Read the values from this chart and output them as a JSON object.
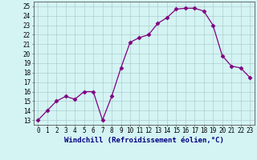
{
  "x": [
    0,
    1,
    2,
    3,
    4,
    5,
    6,
    7,
    8,
    9,
    10,
    11,
    12,
    13,
    14,
    15,
    16,
    17,
    18,
    19,
    20,
    21,
    22,
    23
  ],
  "y": [
    13,
    14,
    15,
    15.5,
    15.2,
    16,
    16,
    13,
    15.5,
    18.5,
    21.2,
    21.7,
    22,
    23.2,
    23.8,
    24.7,
    24.8,
    24.8,
    24.5,
    23.0,
    19.8,
    18.7,
    18.5,
    17.5
  ],
  "line_color": "#800080",
  "marker": "D",
  "marker_size": 2.5,
  "bg_color": "#d4f4f4",
  "grid_color": "#b0cccc",
  "xlabel": "Windchill (Refroidissement éolien,°C)",
  "xlabel_fontsize": 6.5,
  "ylabel_ticks": [
    13,
    14,
    15,
    16,
    17,
    18,
    19,
    20,
    21,
    22,
    23,
    24,
    25
  ],
  "xtick_labels": [
    "0",
    "1",
    "2",
    "3",
    "4",
    "5",
    "6",
    "7",
    "8",
    "9",
    "10",
    "11",
    "12",
    "13",
    "14",
    "15",
    "16",
    "17",
    "18",
    "19",
    "20",
    "21",
    "22",
    "23"
  ],
  "xlim": [
    -0.5,
    23.5
  ],
  "ylim": [
    12.5,
    25.5
  ],
  "tick_fontsize": 5.5
}
